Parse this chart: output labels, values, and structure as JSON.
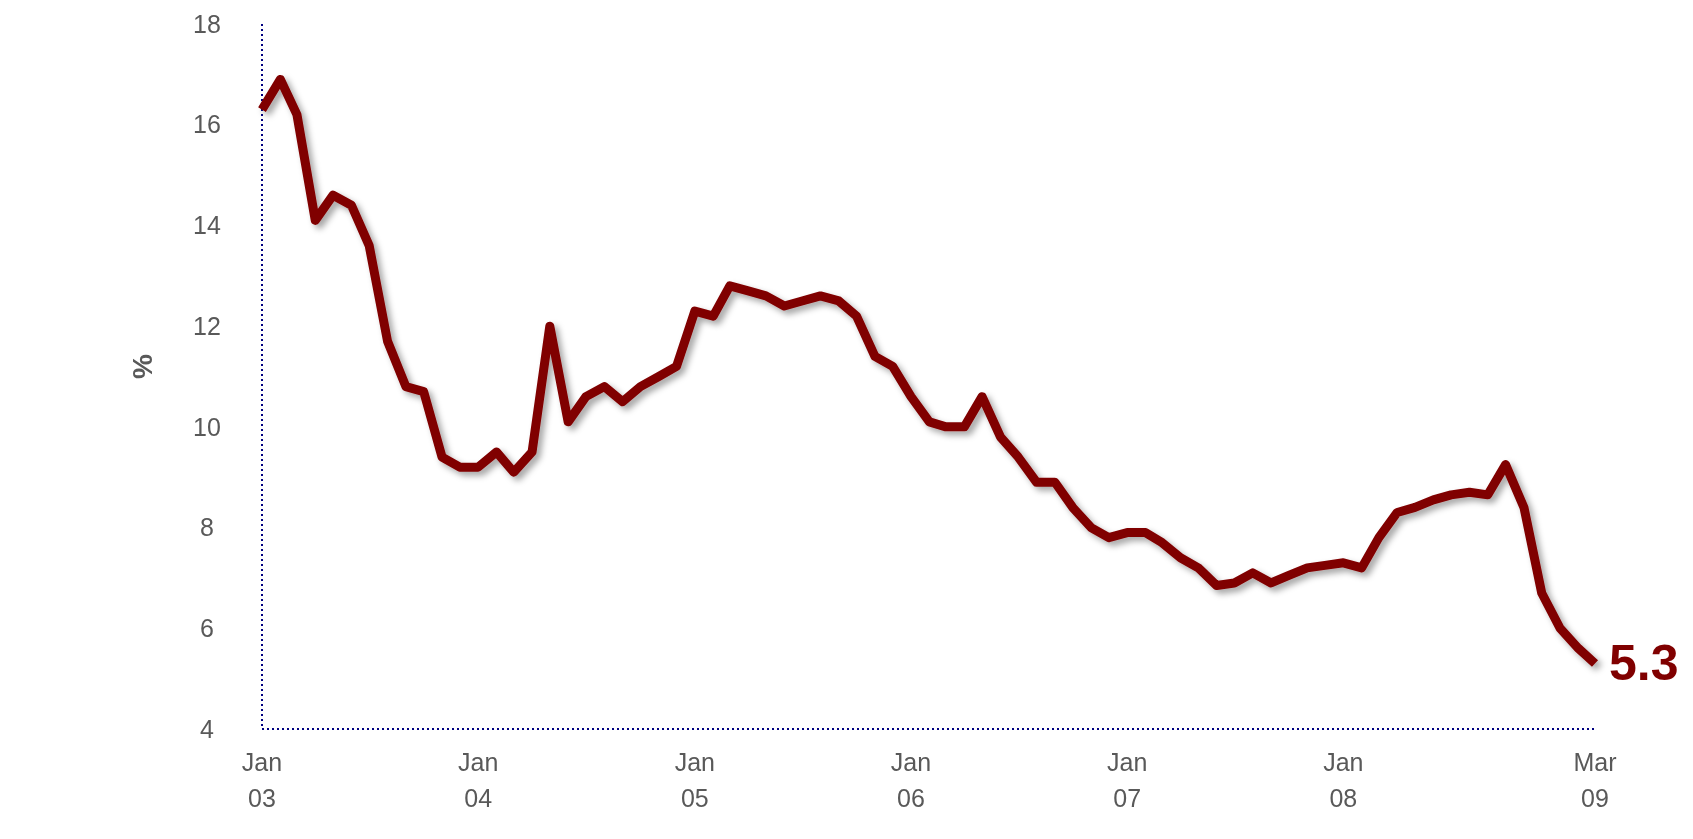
{
  "chart_data": {
    "type": "line",
    "ylabel": "%",
    "x": [
      "2003-01",
      "2003-02",
      "2003-03",
      "2003-04",
      "2003-05",
      "2003-06",
      "2003-07",
      "2003-08",
      "2003-09",
      "2003-10",
      "2003-11",
      "2003-12",
      "2004-01",
      "2004-02",
      "2004-03",
      "2004-04",
      "2004-05",
      "2004-06",
      "2004-07",
      "2004-08",
      "2004-09",
      "2004-10",
      "2004-11",
      "2004-12",
      "2005-01",
      "2005-02",
      "2005-03",
      "2005-04",
      "2005-05",
      "2005-06",
      "2005-07",
      "2005-08",
      "2005-09",
      "2005-10",
      "2005-11",
      "2005-12",
      "2006-01",
      "2006-02",
      "2006-03",
      "2006-04",
      "2006-05",
      "2006-06",
      "2006-07",
      "2006-08",
      "2006-09",
      "2006-10",
      "2006-11",
      "2006-12",
      "2007-01",
      "2007-02",
      "2007-03",
      "2007-04",
      "2007-05",
      "2007-06",
      "2007-07",
      "2007-08",
      "2007-09",
      "2007-10",
      "2007-11",
      "2007-12",
      "2008-01",
      "2008-02",
      "2008-03",
      "2008-04",
      "2008-05",
      "2008-06",
      "2008-07",
      "2008-08",
      "2008-09",
      "2008-10",
      "2008-11",
      "2008-12",
      "2009-01",
      "2009-02",
      "2009-03"
    ],
    "series": [
      {
        "color": "#800000",
        "values": [
          16.3,
          16.9,
          16.2,
          14.1,
          14.6,
          14.4,
          13.6,
          11.7,
          10.8,
          10.7,
          9.4,
          9.2,
          9.2,
          9.5,
          9.1,
          9.5,
          12.0,
          10.1,
          10.6,
          10.8,
          10.5,
          10.8,
          11.0,
          11.2,
          12.3,
          12.2,
          12.8,
          12.7,
          12.6,
          12.4,
          12.5,
          12.6,
          12.5,
          12.2,
          11.4,
          11.2,
          10.6,
          10.1,
          10.0,
          10.0,
          10.6,
          9.8,
          9.4,
          8.9,
          8.9,
          8.4,
          8.0,
          7.8,
          7.9,
          7.9,
          7.7,
          7.4,
          7.2,
          6.85,
          6.9,
          7.1,
          6.9,
          7.05,
          7.2,
          7.25,
          7.3,
          7.2,
          7.8,
          8.3,
          8.4,
          8.55,
          8.65,
          8.7,
          8.65,
          9.25,
          8.4,
          6.7,
          6.0,
          5.6,
          5.3
        ]
      }
    ],
    "xlim": [
      "2003-01",
      "2009-03"
    ],
    "xticks": [
      {
        "value": "2003-01",
        "label": "Jan\n03"
      },
      {
        "value": "2004-01",
        "label": "Jan\n04"
      },
      {
        "value": "2005-01",
        "label": "Jan\n05"
      },
      {
        "value": "2006-01",
        "label": "Jan\n06"
      },
      {
        "value": "2007-01",
        "label": "Jan\n07"
      },
      {
        "value": "2008-01",
        "label": "Jan\n08"
      },
      {
        "value": "2009-03",
        "label": "Mar\n09"
      }
    ],
    "ylim": [
      4,
      18
    ],
    "yticks": [
      4,
      6,
      8,
      10,
      12,
      14,
      16,
      18
    ],
    "grid": false,
    "marker": "none",
    "line_style": "solid",
    "annotations": [
      {
        "text": "5.3",
        "x": "2009-03",
        "y": 5.3
      }
    ]
  }
}
